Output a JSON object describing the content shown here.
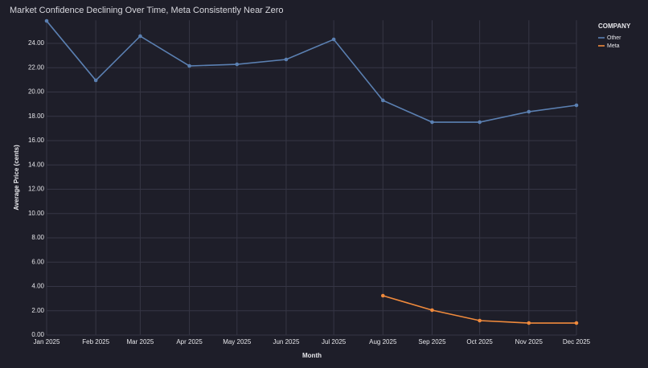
{
  "chart_data": {
    "type": "line",
    "title": "Market Confidence Declining Over Time, Meta Consistently Near Zero",
    "x_label": "Month",
    "y_label": "Average Price (cents)",
    "x": [
      "Jan 2025",
      "Feb 2025",
      "Mar 2025",
      "Apr 2025",
      "May 2025",
      "Jun 2025",
      "Jul 2025",
      "Aug 2025",
      "Sep 2025",
      "Oct 2025",
      "Nov 2025",
      "Dec 2025"
    ],
    "series": [
      {
        "name": "Other",
        "color": "#5b80b2",
        "values": [
          25.85,
          20.96,
          24.6,
          22.15,
          22.28,
          22.68,
          24.33,
          19.31,
          17.52,
          17.52,
          18.38,
          18.91
        ]
      },
      {
        "name": "Meta",
        "color": "#f08a3c",
        "values": [
          null,
          null,
          null,
          null,
          null,
          null,
          null,
          3.24,
          2.05,
          1.19,
          0.99,
          0.99
        ]
      }
    ],
    "legend_title": "COMPANY",
    "ylim": [
      0,
      25.9
    ],
    "yticks": [
      {
        "value": 0,
        "label": "0.00"
      },
      {
        "value": 2,
        "label": "2.00"
      },
      {
        "value": 4,
        "label": "4.00"
      },
      {
        "value": 6,
        "label": "6.00"
      },
      {
        "value": 8,
        "label": "8.00"
      },
      {
        "value": 10,
        "label": "10.00"
      },
      {
        "value": 12,
        "label": "12.00"
      },
      {
        "value": 14,
        "label": "14.00"
      },
      {
        "value": 16,
        "label": "16.00"
      },
      {
        "value": 18,
        "label": "18.00"
      },
      {
        "value": 20,
        "label": "20.00"
      },
      {
        "value": 22,
        "label": "22.00"
      },
      {
        "value": 24,
        "label": "24.00"
      }
    ],
    "grid": true,
    "legend": "right"
  }
}
